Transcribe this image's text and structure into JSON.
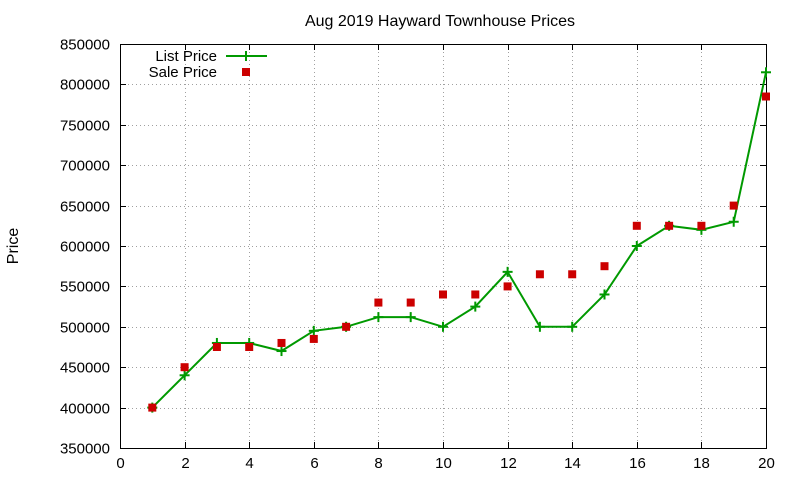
{
  "chart_data": {
    "type": "line",
    "title": "Aug 2019 Hayward Townhouse Prices",
    "xlabel": "",
    "ylabel": "Price",
    "xlim": [
      0,
      20
    ],
    "ylim": [
      350000,
      850000
    ],
    "xticks": [
      0,
      2,
      4,
      6,
      8,
      10,
      12,
      14,
      16,
      18,
      20
    ],
    "yticks": [
      350000,
      400000,
      450000,
      500000,
      550000,
      600000,
      650000,
      700000,
      750000,
      800000,
      850000
    ],
    "grid": true,
    "legend_position": "top-left",
    "series": [
      {
        "name": "List Price",
        "style": "line+cross",
        "color": "#009900",
        "x": [
          1,
          2,
          3,
          4,
          5,
          6,
          7,
          8,
          9,
          10,
          11,
          12,
          13,
          14,
          15,
          16,
          17,
          18,
          19,
          20
        ],
        "y": [
          400000,
          440000,
          480000,
          480000,
          470000,
          495000,
          500000,
          512000,
          512000,
          500000,
          525000,
          568000,
          500000,
          500000,
          540000,
          600000,
          625000,
          620000,
          630000,
          815000
        ]
      },
      {
        "name": "Sale Price",
        "style": "square-points",
        "color": "#cc0000",
        "x": [
          1,
          2,
          3,
          4,
          5,
          6,
          7,
          8,
          9,
          10,
          11,
          12,
          13,
          14,
          15,
          16,
          17,
          18,
          19,
          20
        ],
        "y": [
          400000,
          450000,
          475000,
          475000,
          480000,
          485000,
          500000,
          530000,
          530000,
          540000,
          540000,
          550000,
          565000,
          565000,
          575000,
          625000,
          625000,
          625000,
          650000,
          785000
        ]
      }
    ]
  }
}
